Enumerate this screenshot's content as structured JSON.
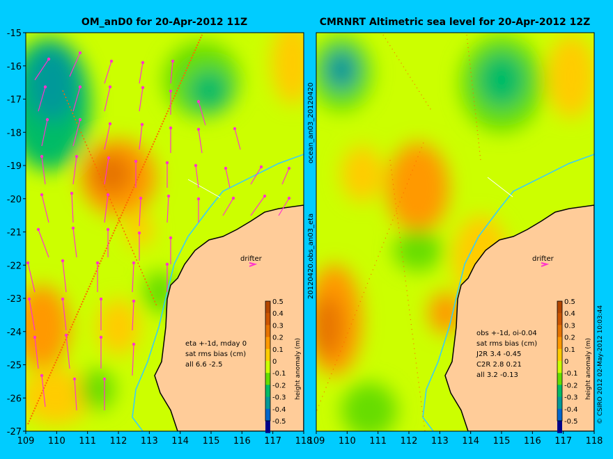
{
  "colors": {
    "background": "#00ccff",
    "land": "#ffcc99",
    "coast": "#000000",
    "shelf_line": "#33ccff",
    "vector": "#ff33cc",
    "drifter": "#ff33cc",
    "track": "#ff6600"
  },
  "colorbar": {
    "label": "height anomaly (m)",
    "levels": [
      "0.5",
      "0.4",
      "0.3",
      "0.2",
      "0.1",
      "0",
      "-0.1",
      "-0.2",
      "-0.3",
      "-0.4",
      "-0.5"
    ],
    "colors": [
      "#b34700",
      "#cc5500",
      "#e67300",
      "#ff9900",
      "#ffcc00",
      "#ccff00",
      "#66dd00",
      "#00bb66",
      "#009999",
      "#0066cc",
      "#000088"
    ]
  },
  "chart_data": [
    {
      "type": "heatmap",
      "title": "OM_anD0 for 20-Apr-2012 11Z",
      "x_ticks": [
        "109",
        "110",
        "111",
        "112",
        "113",
        "114",
        "115",
        "116",
        "117",
        "118"
      ],
      "y_ticks": [
        "-15",
        "-16",
        "-17",
        "-18",
        "-19",
        "-20",
        "-21",
        "-22",
        "-23",
        "-24",
        "-25",
        "-26",
        "-27"
      ],
      "xlim": [
        109,
        118
      ],
      "ylim": [
        -27,
        -15
      ],
      "side_label": "",
      "drifter_label": "drifter",
      "annotation": [
        "eta +-1d, mday 0",
        "sat rms bias (cm)",
        "all 6.6 -2.5"
      ],
      "colorbar_label": "height anomaly (m)"
    },
    {
      "type": "heatmap",
      "title": "CMRNRT Altimetric sea level  for 20-Apr-2012 12Z",
      "x_ticks": [
        "109",
        "110",
        "111",
        "112",
        "113",
        "114",
        "115",
        "116",
        "117",
        "118"
      ],
      "y_ticks": [],
      "xlim": [
        109,
        118
      ],
      "ylim": [
        -27,
        -15
      ],
      "side_label": "ocean_an03_20120420",
      "side_label_2": "20120420.obs_an03_eta",
      "drifter_label": "drifter",
      "annotation": [
        "obs +-1d, oi-0.04",
        "sat rms bias (cm)",
        "J2R   3.4 -0.45",
        "C2R   2.8 0.21",
        "all 3.2 -0.13"
      ],
      "colorbar_label": "height anomaly (m)"
    }
  ],
  "credit": "© CSIRO 2012  02-May-2012 10:03:44"
}
